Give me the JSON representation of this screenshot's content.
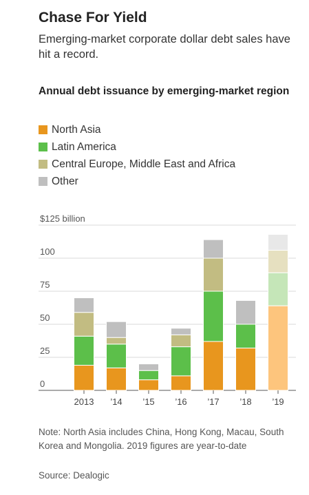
{
  "header": {
    "title": "Chase For Yield",
    "subtitle": "Emerging-market corporate dollar debt sales have hit a record."
  },
  "chart_data": {
    "type": "bar",
    "stacked": true,
    "title": "Annual debt issuance by emerging-market region",
    "xlabel": "",
    "ylabel": "",
    "categories": [
      "2013",
      "’14",
      "’15",
      "’16",
      "’17",
      "’18",
      "’19"
    ],
    "y_ticks": [
      "0",
      "25",
      "50",
      "75",
      "100",
      "$125 billion"
    ],
    "y_tick_values": [
      0,
      25,
      50,
      75,
      100,
      125
    ],
    "ylim": [
      0,
      125
    ],
    "grid": true,
    "legend_position": "top-left",
    "series": [
      {
        "name": "North Asia",
        "color": "#e8961e",
        "values": [
          19,
          17,
          8,
          11,
          37,
          32,
          64
        ]
      },
      {
        "name": "Latin America",
        "color": "#5cbf4a",
        "values": [
          22,
          18,
          7,
          22,
          38,
          18,
          25
        ]
      },
      {
        "name": "Central Europe, Middle East and Africa",
        "color": "#c2bc82",
        "values": [
          18,
          5,
          0,
          9,
          25,
          0,
          17
        ]
      },
      {
        "name": "Other",
        "color": "#bfbfbf",
        "values": [
          11,
          12,
          5,
          5,
          14,
          18,
          12
        ]
      }
    ],
    "highlight": {
      "category": "’19",
      "note": "year-to-date",
      "colors": [
        "#fdc57d",
        "#c5e6b8",
        "#e6e0c0",
        "#e8e8e8"
      ]
    }
  },
  "notes": {
    "footnote": "Note: North Asia includes China, Hong Kong, Macau, South Korea and Mongolia. 2019 figures are year-to-date",
    "source": "Source: Dealogic"
  }
}
